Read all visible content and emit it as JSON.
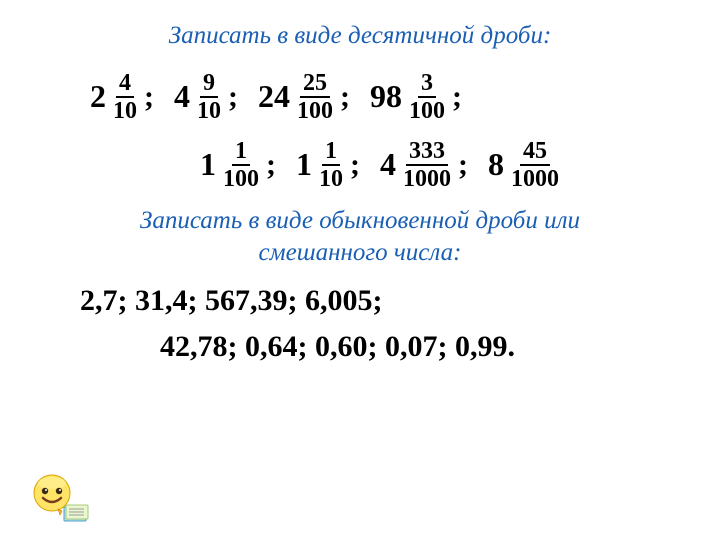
{
  "heading1": "Записать в виде десятичной дроби:",
  "heading2_line1": "Записать в виде обыкновенной дроби или",
  "heading2_line2": "смешанного числа:",
  "row1": [
    {
      "whole": "2",
      "num": "4",
      "den": "10"
    },
    {
      "whole": "4",
      "num": "9",
      "den": "10"
    },
    {
      "whole": "24",
      "num": "25",
      "den": "100"
    },
    {
      "whole": "98",
      "num": "3",
      "den": "100"
    }
  ],
  "row2": [
    {
      "whole": "1",
      "num": "1",
      "den": "100"
    },
    {
      "whole": "1",
      "num": "1",
      "den": "10"
    },
    {
      "whole": "4",
      "num": "333",
      "den": "1000"
    },
    {
      "whole": "8",
      "num": "45",
      "den": "1000"
    }
  ],
  "decimals_line1": "2,7; 31,4; 567,39; 6,005;",
  "decimals_line2": "42,78; 0,64; 0,60; 0,07; 0,99.",
  "colors": {
    "heading": "#1a5fb4",
    "text": "#000000",
    "background": "#ffffff"
  }
}
